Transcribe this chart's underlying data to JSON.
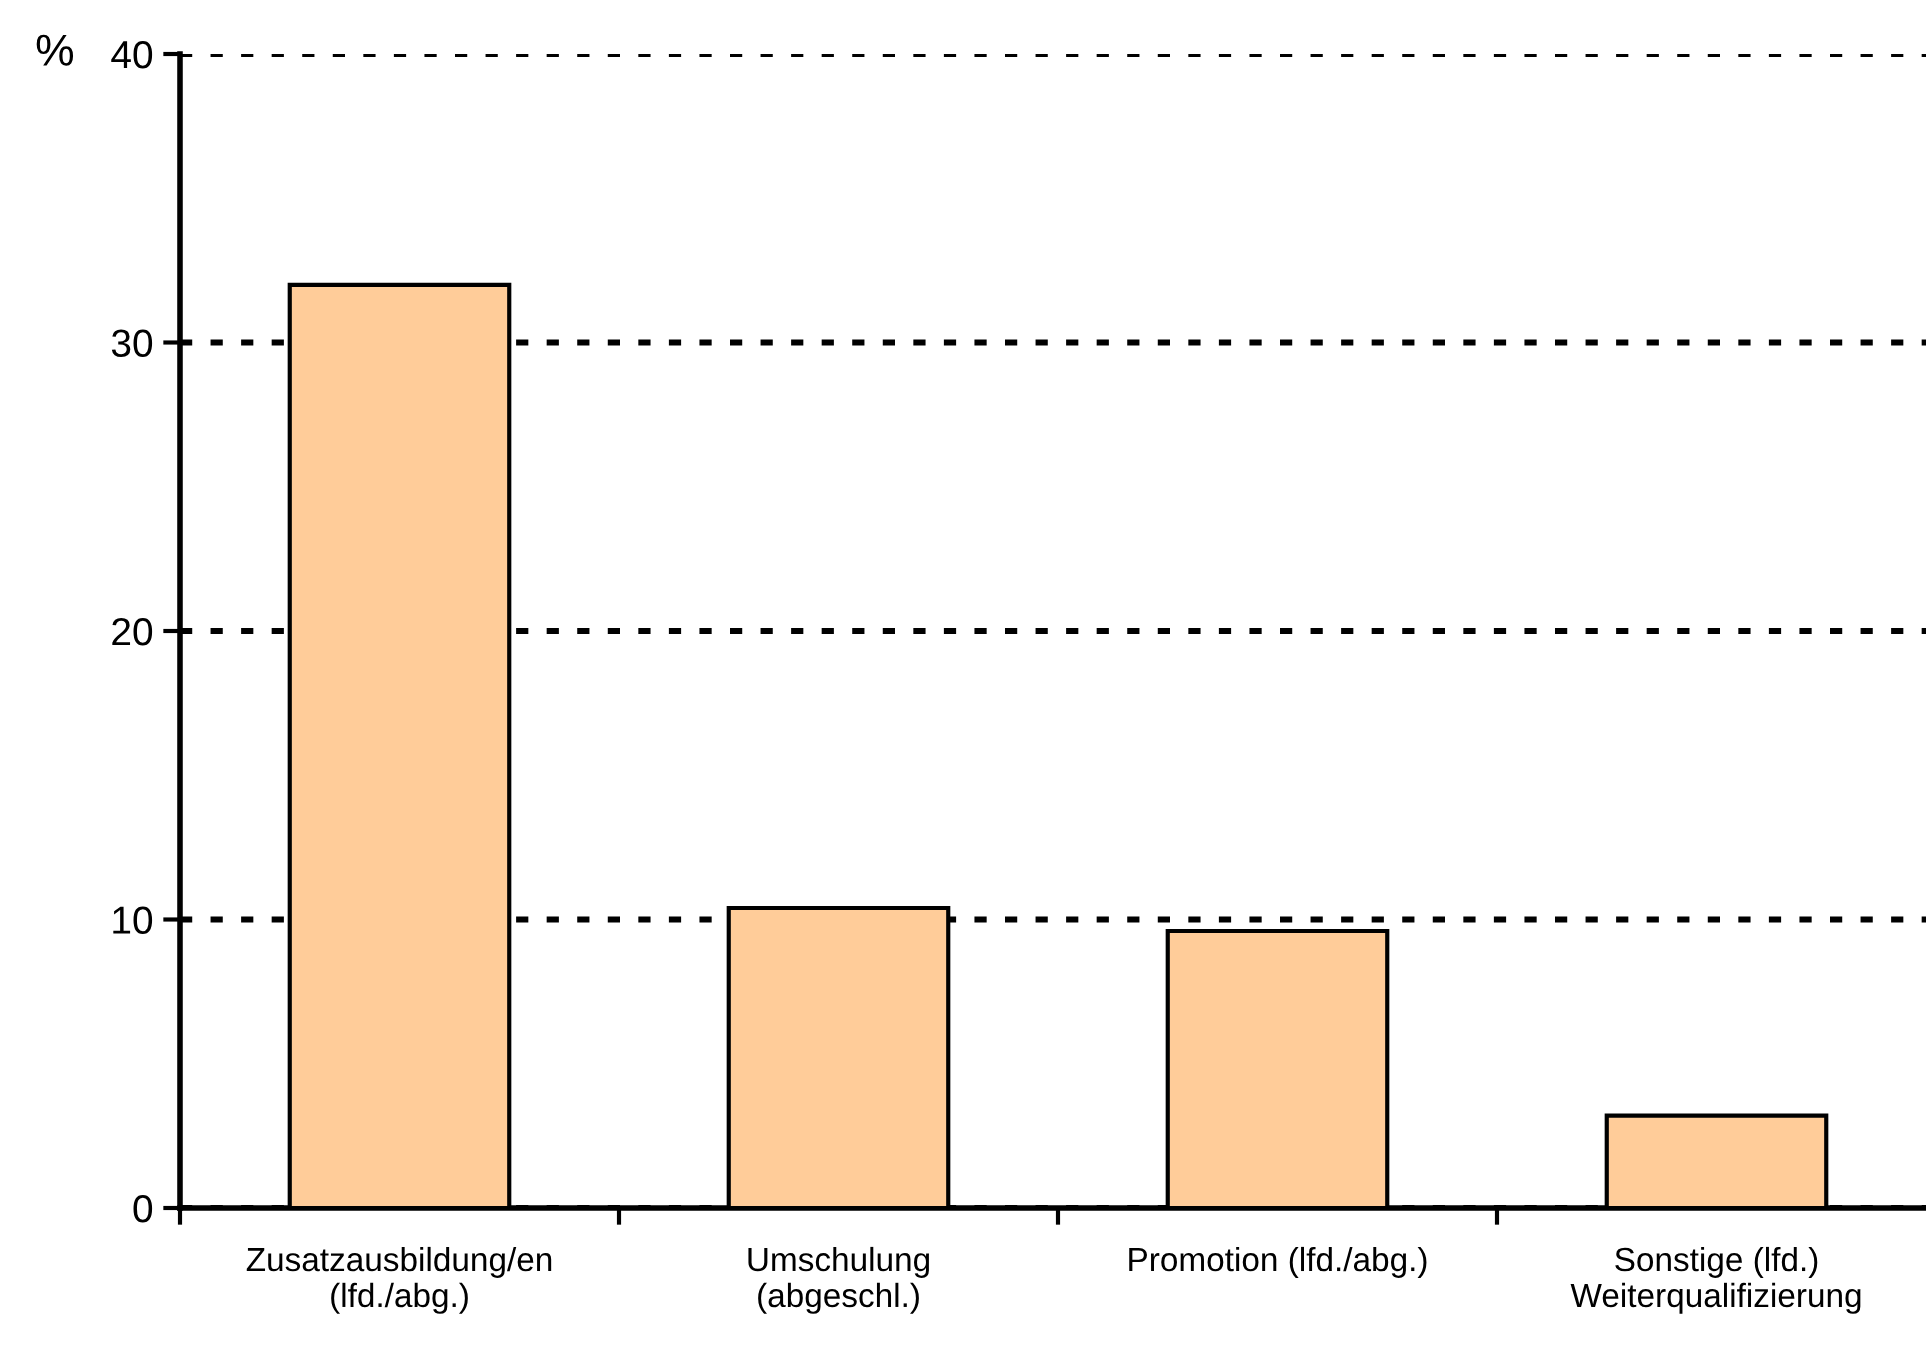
{
  "chart_data": {
    "type": "bar",
    "categories": [
      "Zusatzausbildung/en\n(lfd./abg.)",
      "Umschulung\n(abgeschl.)",
      "Promotion (lfd./abg.)",
      "Sonstige (lfd.)\nWeiterqualifizierung"
    ],
    "values": [
      32,
      10.4,
      9.6,
      3.2
    ],
    "color": "#ffcc99",
    "ylabel": "%",
    "ylim": [
      0,
      40
    ],
    "yticks": [
      0,
      10,
      20,
      30,
      40
    ],
    "grid": "y"
  }
}
